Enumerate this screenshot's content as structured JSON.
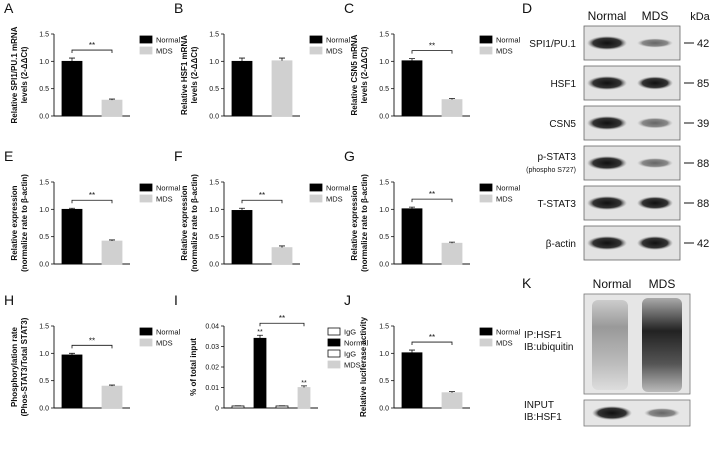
{
  "chart_data": [
    {
      "type": "bar",
      "panel": "A",
      "ylabel": [
        "Relative SPI1/PU.1 mRNA",
        "levels (2-ΔΔCt)"
      ],
      "ylim": [
        0,
        1.5
      ],
      "yticks": [
        {
          "value": 0,
          "label": "0.0"
        },
        {
          "value": 0.5,
          "label": "0.5"
        },
        {
          "value": 1,
          "label": "1.0"
        },
        {
          "value": 1.5,
          "label": "1.5"
        }
      ],
      "series": [
        {
          "name": "Normal",
          "color": "#000000",
          "values": [
            1.0
          ],
          "errors": [
            0.06
          ]
        },
        {
          "name": "MDS",
          "color": "#d0d0d0",
          "values": [
            0.29
          ],
          "errors": [
            0.02
          ]
        }
      ],
      "significance": "**"
    },
    {
      "type": "bar",
      "panel": "B",
      "ylabel": [
        "Relative HSF1 mRNA",
        "levels (2-ΔΔCt)"
      ],
      "ylim": [
        0,
        1.5
      ],
      "yticks": [
        {
          "value": 0,
          "label": "0.0"
        },
        {
          "value": 0.5,
          "label": "0.5"
        },
        {
          "value": 1,
          "label": "1.0"
        },
        {
          "value": 1.5,
          "label": "1.5"
        }
      ],
      "series": [
        {
          "name": "Normal",
          "color": "#000000",
          "values": [
            1.0
          ],
          "errors": [
            0.06
          ]
        },
        {
          "name": "MDS",
          "color": "#d0d0d0",
          "values": [
            1.01
          ],
          "errors": [
            0.05
          ]
        }
      ]
    },
    {
      "type": "bar",
      "panel": "C",
      "ylabel": [
        "Relative CSN5 mRNA",
        "levels (2-ΔΔCt)"
      ],
      "ylim": [
        0,
        1.5
      ],
      "yticks": [
        {
          "value": 0,
          "label": "0.0"
        },
        {
          "value": 0.5,
          "label": "0.5"
        },
        {
          "value": 1,
          "label": "1.0"
        },
        {
          "value": 1.5,
          "label": "1.5"
        }
      ],
      "series": [
        {
          "name": "Normal",
          "color": "#000000",
          "values": [
            1.01
          ],
          "errors": [
            0.04
          ]
        },
        {
          "name": "MDS",
          "color": "#d0d0d0",
          "values": [
            0.3
          ],
          "errors": [
            0.02
          ]
        }
      ],
      "significance": "**"
    },
    {
      "type": "bar",
      "panel": "E",
      "ylabel": [
        "Relative expression",
        "(normalize rate to β-actin)"
      ],
      "ylim": [
        0,
        1.5
      ],
      "yticks": [
        {
          "value": 0,
          "label": "0.0"
        },
        {
          "value": 0.5,
          "label": "0.5"
        },
        {
          "value": 1,
          "label": "1.0"
        },
        {
          "value": 1.5,
          "label": "1.5"
        }
      ],
      "series": [
        {
          "name": "Normal",
          "color": "#000000",
          "values": [
            1.0
          ],
          "errors": [
            0.02
          ]
        },
        {
          "name": "MDS",
          "color": "#d0d0d0",
          "values": [
            0.42
          ],
          "errors": [
            0.02
          ]
        }
      ],
      "significance": "**"
    },
    {
      "type": "bar",
      "panel": "F",
      "ylabel": [
        "Relative expression",
        "(normalize rate to β-actin)"
      ],
      "ylim": [
        0,
        1.5
      ],
      "yticks": [
        {
          "value": 0,
          "label": "0.0"
        },
        {
          "value": 0.5,
          "label": "0.5"
        },
        {
          "value": 1,
          "label": "1.0"
        },
        {
          "value": 1.5,
          "label": "1.5"
        }
      ],
      "series": [
        {
          "name": "Normal",
          "color": "#000000",
          "values": [
            0.98
          ],
          "errors": [
            0.04
          ]
        },
        {
          "name": "MDS",
          "color": "#d0d0d0",
          "values": [
            0.3
          ],
          "errors": [
            0.03
          ]
        }
      ],
      "significance": "**"
    },
    {
      "type": "bar",
      "panel": "G",
      "ylabel": [
        "Relative expression",
        "(normalize rate to β-actin)"
      ],
      "ylim": [
        0,
        1.5
      ],
      "yticks": [
        {
          "value": 0,
          "label": "0.0"
        },
        {
          "value": 0.5,
          "label": "0.5"
        },
        {
          "value": 1,
          "label": "1.0"
        },
        {
          "value": 1.5,
          "label": "1.5"
        }
      ],
      "series": [
        {
          "name": "Normal",
          "color": "#000000",
          "values": [
            1.01
          ],
          "errors": [
            0.03
          ]
        },
        {
          "name": "MDS",
          "color": "#d0d0d0",
          "values": [
            0.38
          ],
          "errors": [
            0.02
          ]
        }
      ],
      "significance": "**"
    },
    {
      "type": "bar",
      "panel": "H",
      "ylabel": [
        "Phosphorylation rate",
        "(Phos-STAT3/Total STAT3)"
      ],
      "ylim": [
        0,
        1.5
      ],
      "yticks": [
        {
          "value": 0,
          "label": "0.0"
        },
        {
          "value": 0.5,
          "label": "0.5"
        },
        {
          "value": 1,
          "label": "1.0"
        },
        {
          "value": 1.5,
          "label": "1.5"
        }
      ],
      "series": [
        {
          "name": "Normal",
          "color": "#000000",
          "values": [
            0.97
          ],
          "errors": [
            0.03
          ]
        },
        {
          "name": "MDS",
          "color": "#d0d0d0",
          "values": [
            0.4
          ],
          "errors": [
            0.02
          ]
        }
      ],
      "significance": "**"
    },
    {
      "type": "bar",
      "panel": "I",
      "ylabel": [
        "% of total input"
      ],
      "ylim": [
        0,
        0.04
      ],
      "yticks": [
        0,
        0.01,
        0.02,
        0.03,
        0.04
      ],
      "series": [
        {
          "name": "IgG",
          "color": "#ffffff",
          "values": [
            0.001
          ],
          "errors": [
            0.0001
          ]
        },
        {
          "name": "Normal",
          "color": "#000000",
          "values": [
            0.034
          ],
          "errors": [
            0.0015
          ],
          "annotation": "**"
        },
        {
          "name": "IgG",
          "color": "#ffffff",
          "values": [
            0.001
          ],
          "errors": [
            0.0001
          ]
        },
        {
          "name": "MDS",
          "color": "#d0d0d0",
          "values": [
            0.01
          ],
          "errors": [
            0.0008
          ],
          "annotation": "**"
        }
      ],
      "significance": "**",
      "bracket_series": [
        1,
        3
      ]
    },
    {
      "type": "bar",
      "panel": "J",
      "ylabel": [
        "Relative luciferase activity"
      ],
      "ylim": [
        0,
        1.5
      ],
      "yticks": [
        {
          "value": 0,
          "label": "0.0"
        },
        {
          "value": 0.5,
          "label": "0.5"
        },
        {
          "value": 1,
          "label": "1.0"
        },
        {
          "value": 1.5,
          "label": "1.5"
        }
      ],
      "series": [
        {
          "name": "Normal",
          "color": "#000000",
          "values": [
            1.01
          ],
          "errors": [
            0.05
          ]
        },
        {
          "name": "MDS",
          "color": "#d0d0d0",
          "values": [
            0.28
          ],
          "errors": [
            0.02
          ]
        }
      ],
      "significance": "**"
    }
  ],
  "blot_d": {
    "panel": "D",
    "columns": [
      "Normal",
      "MDS"
    ],
    "unit": "kDa",
    "rows": [
      {
        "label": "SPI1/PU.1",
        "kda": "42"
      },
      {
        "label": "HSF1",
        "kda": "85"
      },
      {
        "label": "CSN5",
        "kda": "39"
      },
      {
        "label": "p-STAT3",
        "sublabel": "(phospho S727)",
        "kda": "88"
      },
      {
        "label": "T-STAT3",
        "kda": "88"
      },
      {
        "label": "β-actin",
        "kda": "42"
      }
    ]
  },
  "blot_k": {
    "panel": "K",
    "columns": [
      "Normal",
      "MDS"
    ],
    "ip_label": "IP:HSF1",
    "ib_label": "IB:ubiquitin",
    "input_label": "INPUT",
    "input_ib_label": "IB:HSF1"
  }
}
